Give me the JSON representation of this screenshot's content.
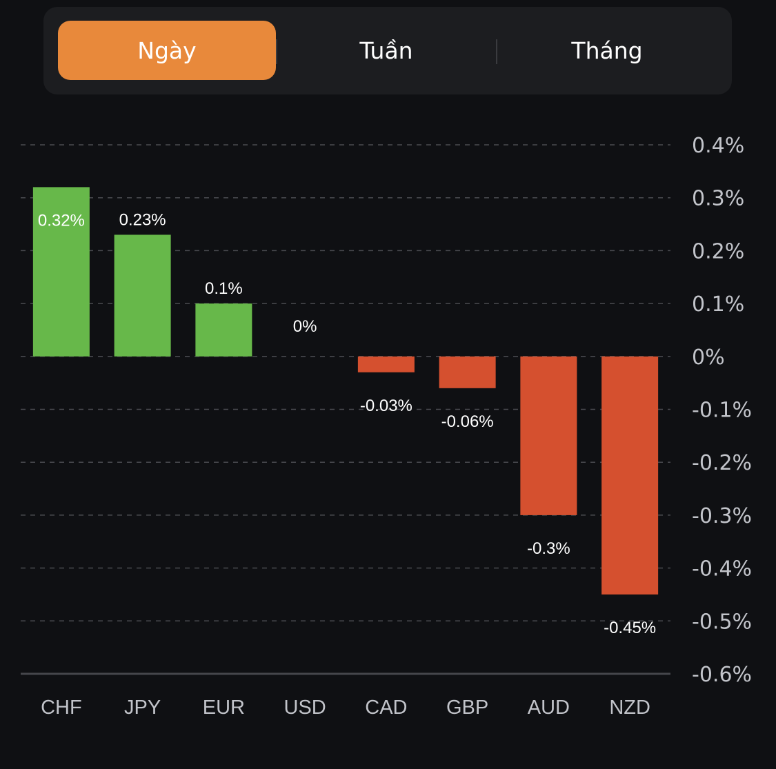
{
  "tabs": [
    {
      "label": "Ngày",
      "active": true
    },
    {
      "label": "Tuần",
      "active": false
    },
    {
      "label": "Tháng",
      "active": false
    }
  ],
  "colors": {
    "active_tab": "#e8893b",
    "positive": "#67b84a",
    "negative": "#d5502f",
    "background": "#0f1013"
  },
  "chart_data": {
    "type": "bar",
    "title": "",
    "xlabel": "",
    "ylabel": "",
    "categories": [
      "CHF",
      "JPY",
      "EUR",
      "USD",
      "CAD",
      "GBP",
      "AUD",
      "NZD"
    ],
    "values": [
      0.32,
      0.23,
      0.1,
      0,
      -0.03,
      -0.06,
      -0.3,
      -0.45
    ],
    "data_labels": [
      "0.32%",
      "0.23%",
      "0.1%",
      "0%",
      "-0.03%",
      "-0.06%",
      "-0.3%",
      "-0.45%"
    ],
    "ylim": [
      -0.6,
      0.4
    ],
    "yticks": [
      0.4,
      0.3,
      0.2,
      0.1,
      0,
      -0.1,
      -0.2,
      -0.3,
      -0.4,
      -0.5,
      -0.6
    ],
    "ytick_labels": [
      "0.4%",
      "0.3%",
      "0.2%",
      "0.1%",
      "0%",
      "-0.1%",
      "-0.2%",
      "-0.3%",
      "-0.4%",
      "-0.5%",
      "-0.6%"
    ],
    "y_axis_position": "right",
    "grid": true,
    "unit": "%"
  }
}
